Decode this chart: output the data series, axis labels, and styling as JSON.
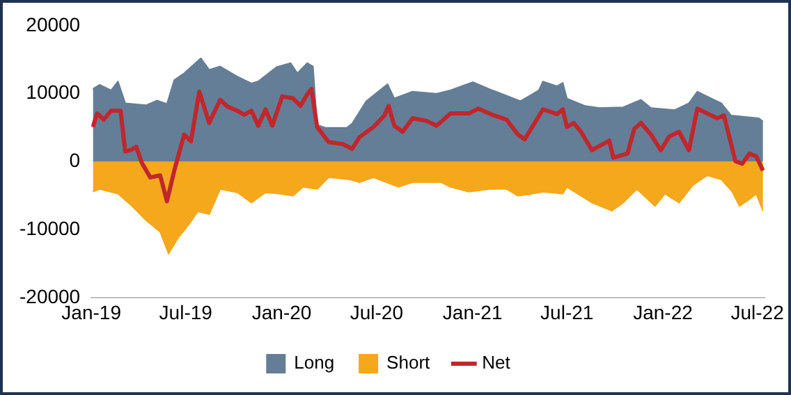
{
  "chart_data": {
    "type": "area",
    "legend": "bottom",
    "grid": false,
    "marker": "none",
    "xlim": [
      "2019-01-01",
      "2022-07-15"
    ],
    "xticks": [
      {
        "value": "2019-01-01",
        "label": "Jan-19"
      },
      {
        "value": "2019-07-01",
        "label": "Jul-19"
      },
      {
        "value": "2020-01-01",
        "label": "Jan-20"
      },
      {
        "value": "2020-07-01",
        "label": "Jul-20"
      },
      {
        "value": "2021-01-01",
        "label": "Jan-21"
      },
      {
        "value": "2021-07-01",
        "label": "Jul-21"
      },
      {
        "value": "2022-01-01",
        "label": "Jan-22"
      },
      {
        "value": "2022-07-01",
        "label": "Jul-22"
      }
    ],
    "ylim": [
      -20000,
      20000
    ],
    "yticks": [
      -20000,
      -10000,
      0,
      10000,
      20000
    ],
    "series": [
      {
        "name": "Long",
        "color": "#647e97",
        "x": [
          "2019-01-04",
          "2019-01-17",
          "2019-02-08",
          "2019-02-21",
          "2019-03-07",
          "2019-04-16",
          "2019-05-07",
          "2019-05-26",
          "2019-06-09",
          "2019-06-28",
          "2019-07-30",
          "2019-08-15",
          "2019-09-05",
          "2019-10-08",
          "2019-11-04",
          "2019-11-17",
          "2019-12-22",
          "2020-01-18",
          "2020-01-31",
          "2020-02-19",
          "2020-03-01",
          "2020-03-09",
          "2020-03-25",
          "2020-05-05",
          "2020-05-15",
          "2020-06-11",
          "2020-07-22",
          "2020-08-04",
          "2020-09-08",
          "2020-10-24",
          "2020-11-20",
          "2021-01-02",
          "2021-02-08",
          "2021-04-03",
          "2021-05-08",
          "2021-05-16",
          "2021-06-12",
          "2021-06-23",
          "2021-07-01",
          "2021-08-05",
          "2021-09-01",
          "2021-10-17",
          "2021-11-20",
          "2021-12-09",
          "2022-01-24",
          "2022-02-20",
          "2022-03-08",
          "2022-04-04",
          "2022-04-23",
          "2022-05-12",
          "2022-07-04",
          "2022-07-12"
        ],
        "values": [
          10700,
          11300,
          10500,
          11800,
          8600,
          8300,
          9000,
          8500,
          12000,
          13000,
          15200,
          13500,
          14000,
          12500,
          11500,
          11800,
          13900,
          14500,
          13000,
          14500,
          14000,
          5400,
          5000,
          5000,
          5600,
          8900,
          11400,
          9300,
          10300,
          10000,
          10500,
          11700,
          10500,
          8900,
          10500,
          11800,
          11100,
          11600,
          9300,
          8200,
          7900,
          8000,
          9100,
          7900,
          7600,
          8600,
          10300,
          9300,
          8600,
          6800,
          6400,
          5900
        ]
      },
      {
        "name": "Short",
        "color": "#f5a81c",
        "x": [
          "2019-01-04",
          "2019-01-17",
          "2019-02-21",
          "2019-03-20",
          "2019-04-16",
          "2019-05-13",
          "2019-05-29",
          "2019-06-17",
          "2019-07-06",
          "2019-07-24",
          "2019-08-15",
          "2019-09-05",
          "2019-10-08",
          "2019-11-04",
          "2019-12-01",
          "2019-12-27",
          "2020-01-23",
          "2020-02-11",
          "2020-03-09",
          "2020-03-31",
          "2020-05-10",
          "2020-05-29",
          "2020-06-25",
          "2020-08-12",
          "2020-09-08",
          "2020-11-01",
          "2020-11-20",
          "2020-12-25",
          "2021-02-03",
          "2021-03-07",
          "2021-03-29",
          "2021-04-25",
          "2021-05-16",
          "2021-06-23",
          "2021-07-01",
          "2021-08-18",
          "2021-09-25",
          "2021-10-17",
          "2021-11-12",
          "2021-12-17",
          "2022-01-05",
          "2022-02-01",
          "2022-02-28",
          "2022-03-27",
          "2022-04-23",
          "2022-05-14",
          "2022-05-28",
          "2022-06-16",
          "2022-06-29",
          "2022-07-12"
        ],
        "values": [
          -4400,
          -4000,
          -4700,
          -6500,
          -8600,
          -10300,
          -13500,
          -11100,
          -9300,
          -7300,
          -7700,
          -4000,
          -4500,
          -6000,
          -4500,
          -4700,
          -5000,
          -3700,
          -4000,
          -2300,
          -2600,
          -3000,
          -2300,
          -3700,
          -3000,
          -3000,
          -3700,
          -4400,
          -4000,
          -4000,
          -5000,
          -4700,
          -4400,
          -4700,
          -3700,
          -6000,
          -7200,
          -6000,
          -4000,
          -6500,
          -4700,
          -6000,
          -3400,
          -2000,
          -2600,
          -4400,
          -6500,
          -5500,
          -4700,
          -7200
        ]
      },
      {
        "name": "Net",
        "type": "line",
        "color": "#c0272d",
        "x": [
          "2019-01-04",
          "2019-01-12",
          "2019-01-25",
          "2019-02-08",
          "2019-02-26",
          "2019-03-07",
          "2019-03-20",
          "2019-03-28",
          "2019-04-08",
          "2019-04-24",
          "2019-05-13",
          "2019-05-26",
          "2019-06-09",
          "2019-06-28",
          "2019-07-11",
          "2019-07-27",
          "2019-08-15",
          "2019-09-05",
          "2019-09-19",
          "2019-10-08",
          "2019-10-21",
          "2019-11-04",
          "2019-11-17",
          "2019-12-01",
          "2019-12-14",
          "2020-01-02",
          "2020-01-23",
          "2020-02-06",
          "2020-02-19",
          "2020-02-27",
          "2020-03-09",
          "2020-03-31",
          "2020-04-27",
          "2020-05-15",
          "2020-05-29",
          "2020-06-25",
          "2020-07-16",
          "2020-07-24",
          "2020-08-04",
          "2020-08-20",
          "2020-09-08",
          "2020-10-05",
          "2020-10-24",
          "2020-11-20",
          "2020-12-25",
          "2021-01-12",
          "2021-02-08",
          "2021-03-07",
          "2021-03-29",
          "2021-04-11",
          "2021-05-16",
          "2021-06-12",
          "2021-06-23",
          "2021-07-01",
          "2021-07-14",
          "2021-07-28",
          "2021-08-18",
          "2021-09-20",
          "2021-09-28",
          "2021-10-25",
          "2021-11-07",
          "2021-11-20",
          "2021-12-09",
          "2021-12-28",
          "2022-01-13",
          "2022-02-01",
          "2022-02-20",
          "2022-03-08",
          "2022-03-27",
          "2022-04-15",
          "2022-04-28",
          "2022-05-20",
          "2022-06-02",
          "2022-06-16",
          "2022-06-29",
          "2022-07-12"
        ],
        "values": [
          5100,
          7100,
          6200,
          7500,
          7500,
          1500,
          1800,
          2200,
          -200,
          -2300,
          -2000,
          -5800,
          -1300,
          4000,
          3000,
          10300,
          5700,
          9100,
          8100,
          7500,
          6900,
          7500,
          5300,
          7700,
          5300,
          9600,
          9300,
          8200,
          9900,
          10700,
          5100,
          2900,
          2600,
          1900,
          3600,
          5100,
          6800,
          8200,
          5300,
          4400,
          6400,
          6000,
          5300,
          7100,
          7100,
          7800,
          6900,
          6200,
          4000,
          3300,
          7700,
          7000,
          7700,
          5100,
          5700,
          4400,
          1700,
          3100,
          600,
          1200,
          4800,
          5700,
          4000,
          1700,
          3700,
          4400,
          1700,
          7800,
          7100,
          6400,
          6800,
          100,
          -300,
          1200,
          800,
          -1300
        ]
      }
    ]
  }
}
